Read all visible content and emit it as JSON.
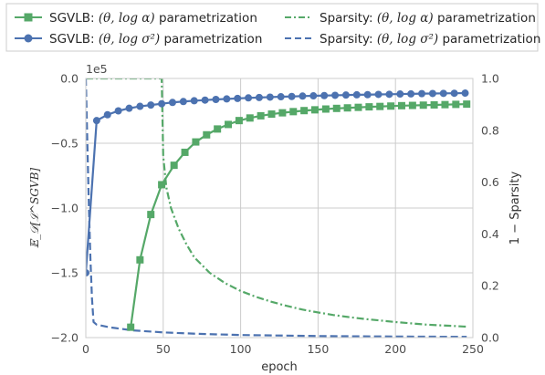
{
  "chart_data": {
    "type": "line",
    "xlabel": "epoch",
    "ylabel_left": "𝔼_𝒟[ℒ^SGVB]",
    "ylabel_right": "1 − Sparsity",
    "offset_label": "1e5",
    "xlim": [
      0,
      250
    ],
    "ylim_left": [
      -200000,
      0
    ],
    "ylim_right": [
      0,
      1
    ],
    "x_ticks": [
      0,
      50,
      100,
      150,
      200,
      250
    ],
    "y_ticks_left": [
      0,
      -50000,
      -100000,
      -150000,
      -200000
    ],
    "y_ticks_left_labels": [
      "0.0",
      "−0.5",
      "−1.0",
      "−1.5",
      "−2.0"
    ],
    "y_ticks_right": [
      0,
      0.2,
      0.4,
      0.6,
      0.8,
      1.0
    ],
    "y_ticks_right_labels": [
      "0.0",
      "0.2",
      "0.4",
      "0.6",
      "0.8",
      "1.0"
    ],
    "grid": true,
    "legend_placement": "top, outside, two columns",
    "colors": {
      "green": "#55a868",
      "blue": "#4c72b0",
      "grid": "#cccccc",
      "spine": "#cccccc"
    },
    "legend": {
      "sgvlb_alpha": {
        "prefix": "SGVLB: ",
        "math": "(θ, log α)",
        "suffix": " parametrization"
      },
      "sgvlb_sigma": {
        "prefix": "SGVLB: ",
        "math": "(θ, log σ²)",
        "suffix": " parametrization"
      },
      "sparsity_alpha": {
        "prefix": "Sparsity: ",
        "math": "(θ, log α)",
        "suffix": " parametrization"
      },
      "sparsity_sigma": {
        "prefix": "Sparsity: ",
        "math": "(θ, log σ²)",
        "suffix": " parametrization"
      }
    },
    "series": [
      {
        "name": "SGVLB: (θ, log α) parametrization",
        "axis": "left",
        "color": "#55a868",
        "style": "solid",
        "marker": "square",
        "points": [
          [
            29,
            -192000
          ],
          [
            35,
            -140000
          ],
          [
            42,
            -105000
          ],
          [
            49,
            -82000
          ],
          [
            57,
            -67000
          ],
          [
            64,
            -57000
          ],
          [
            71,
            -49000
          ],
          [
            78,
            -43500
          ],
          [
            85,
            -39000
          ],
          [
            92,
            -35500
          ],
          [
            99,
            -32500
          ],
          [
            106,
            -30500
          ],
          [
            113,
            -28800
          ],
          [
            120,
            -27500
          ],
          [
            127,
            -26500
          ],
          [
            134,
            -25600
          ],
          [
            141,
            -24800
          ],
          [
            148,
            -24200
          ],
          [
            155,
            -23600
          ],
          [
            162,
            -23100
          ],
          [
            169,
            -22700
          ],
          [
            176,
            -22300
          ],
          [
            183,
            -21900
          ],
          [
            190,
            -21600
          ],
          [
            197,
            -21300
          ],
          [
            204,
            -21000
          ],
          [
            211,
            -20800
          ],
          [
            218,
            -20600
          ],
          [
            225,
            -20400
          ],
          [
            232,
            -20200
          ],
          [
            239,
            -20000
          ],
          [
            246,
            -19800
          ]
        ]
      },
      {
        "name": "SGVLB: (θ, log σ²) parametrization",
        "axis": "left",
        "color": "#4c72b0",
        "style": "solid",
        "marker": "circle",
        "points": [
          [
            0,
            -150000
          ],
          [
            7,
            -32500
          ],
          [
            14,
            -28000
          ],
          [
            21,
            -25000
          ],
          [
            28,
            -23000
          ],
          [
            35,
            -21500
          ],
          [
            42,
            -20500
          ],
          [
            49,
            -19500
          ],
          [
            56,
            -18500
          ],
          [
            63,
            -17800
          ],
          [
            70,
            -17200
          ],
          [
            77,
            -16700
          ],
          [
            84,
            -16200
          ],
          [
            91,
            -15800
          ],
          [
            98,
            -15400
          ],
          [
            105,
            -15000
          ],
          [
            112,
            -14700
          ],
          [
            119,
            -14400
          ],
          [
            126,
            -14100
          ],
          [
            133,
            -13900
          ],
          [
            140,
            -13600
          ],
          [
            147,
            -13400
          ],
          [
            154,
            -13200
          ],
          [
            161,
            -13000
          ],
          [
            168,
            -12800
          ],
          [
            175,
            -12600
          ],
          [
            182,
            -12500
          ],
          [
            189,
            -12300
          ],
          [
            196,
            -12200
          ],
          [
            203,
            -12000
          ],
          [
            210,
            -11900
          ],
          [
            217,
            -11700
          ],
          [
            224,
            -11600
          ],
          [
            231,
            -11500
          ],
          [
            238,
            -11400
          ],
          [
            245,
            -11300
          ]
        ]
      },
      {
        "name": "Sparsity: (θ, log α) parametrization",
        "axis": "right",
        "color": "#55a868",
        "style": "dashdot",
        "marker": "none",
        "points": [
          [
            0,
            1.0
          ],
          [
            49,
            1.0
          ],
          [
            50,
            0.7
          ],
          [
            52,
            0.58
          ],
          [
            55,
            0.5
          ],
          [
            60,
            0.42
          ],
          [
            65,
            0.36
          ],
          [
            70,
            0.31
          ],
          [
            80,
            0.25
          ],
          [
            90,
            0.21
          ],
          [
            100,
            0.18
          ],
          [
            110,
            0.157
          ],
          [
            120,
            0.138
          ],
          [
            130,
            0.122
          ],
          [
            140,
            0.108
          ],
          [
            150,
            0.097
          ],
          [
            160,
            0.087
          ],
          [
            170,
            0.079
          ],
          [
            180,
            0.072
          ],
          [
            190,
            0.066
          ],
          [
            200,
            0.06
          ],
          [
            210,
            0.055
          ],
          [
            220,
            0.05
          ],
          [
            230,
            0.047
          ],
          [
            240,
            0.044
          ],
          [
            246,
            0.042
          ]
        ]
      },
      {
        "name": "Sparsity: (θ, log σ²) parametrization",
        "axis": "right",
        "color": "#4c72b0",
        "style": "dashed",
        "marker": "none",
        "points": [
          [
            0,
            1.0
          ],
          [
            1,
            0.75
          ],
          [
            2,
            0.5
          ],
          [
            3,
            0.3
          ],
          [
            4,
            0.15
          ],
          [
            5,
            0.06
          ],
          [
            7,
            0.05
          ],
          [
            15,
            0.04
          ],
          [
            30,
            0.028
          ],
          [
            50,
            0.02
          ],
          [
            75,
            0.014
          ],
          [
            100,
            0.01
          ],
          [
            150,
            0.006
          ],
          [
            200,
            0.004
          ],
          [
            246,
            0.003
          ]
        ]
      }
    ]
  }
}
